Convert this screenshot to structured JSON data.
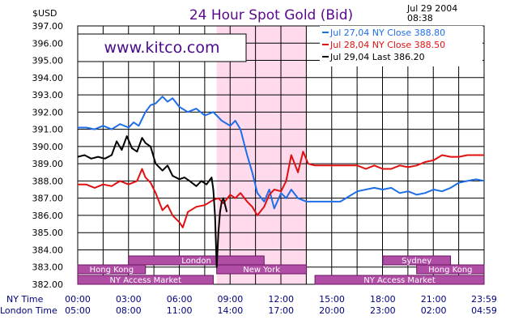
{
  "chart_data": {
    "type": "line",
    "title": "24 Hour Spot Gold (Bid)",
    "ylabel": "$USD",
    "date": "Jul 29 2004",
    "time": "08:38",
    "watermark": "www.kitco.com",
    "ylim": [
      382,
      397
    ],
    "yticks": [
      "397.00",
      "396.00",
      "395.00",
      "394.00",
      "393.00",
      "392.00",
      "391.00",
      "390.00",
      "389.00",
      "388.00",
      "387.00",
      "386.00",
      "385.00",
      "384.00",
      "383.00",
      "382.00"
    ],
    "xticks_ny": [
      "00:00",
      "03:00",
      "06:00",
      "09:00",
      "12:00",
      "15:00",
      "18:00",
      "21:00",
      "23:59"
    ],
    "xticks_london": [
      "05:00",
      "08:00",
      "11:00",
      "14:00",
      "17:00",
      "20:00",
      "23:00",
      "02:00",
      "04:59"
    ],
    "xrow_ny_label": "NY Time",
    "xrow_london_label": "London Time",
    "legend": [
      {
        "date": "Jul 27,04",
        "label": "NY Close",
        "value": "388.80",
        "color": "#1e6ee8"
      },
      {
        "date": "Jul 28,04",
        "label": "NY Close",
        "value": "388.50",
        "color": "#e01010"
      },
      {
        "date": "Jul 29,04",
        "label": "Last",
        "value": "386.20",
        "color": "#000000"
      }
    ],
    "markets": [
      {
        "name": "London",
        "start": 3.0,
        "end": 11.0,
        "row": 0
      },
      {
        "name": "Sydney",
        "start": 18.0,
        "end": 22.0,
        "row": 0
      },
      {
        "name": "Hong Kong",
        "start": 0.0,
        "end": 4.0,
        "row": 1
      },
      {
        "name": "New York",
        "start": 8.2,
        "end": 13.5,
        "row": 1
      },
      {
        "name": "Hong Kong",
        "start": 20.0,
        "end": 23.98,
        "row": 1
      },
      {
        "name": "NY Access Market",
        "start": 0.0,
        "end": 8.0,
        "row": 2
      },
      {
        "name": "NY Access Market",
        "start": 14.0,
        "end": 23.98,
        "row": 2
      }
    ],
    "highlight": {
      "start": 8.2,
      "end": 13.5
    },
    "series": [
      {
        "color": "#1e6ee8",
        "points": [
          [
            0,
            391.1
          ],
          [
            0.5,
            391.1
          ],
          [
            1,
            391.0
          ],
          [
            1.5,
            391.2
          ],
          [
            2,
            391.0
          ],
          [
            2.5,
            391.3
          ],
          [
            3,
            391.1
          ],
          [
            3.3,
            391.4
          ],
          [
            3.6,
            391.2
          ],
          [
            4,
            392.0
          ],
          [
            4.3,
            392.4
          ],
          [
            4.6,
            392.5
          ],
          [
            5,
            392.9
          ],
          [
            5.3,
            392.6
          ],
          [
            5.6,
            392.8
          ],
          [
            6,
            392.3
          ],
          [
            6.5,
            392.0
          ],
          [
            7,
            392.2
          ],
          [
            7.5,
            391.8
          ],
          [
            8,
            392.0
          ],
          [
            8.5,
            391.5
          ],
          [
            9,
            391.2
          ],
          [
            9.3,
            391.5
          ],
          [
            9.6,
            391.0
          ],
          [
            10,
            389.5
          ],
          [
            10.3,
            388.5
          ],
          [
            10.6,
            387.3
          ],
          [
            11,
            386.8
          ],
          [
            11.3,
            387.5
          ],
          [
            11.6,
            386.4
          ],
          [
            12,
            387.3
          ],
          [
            12.3,
            387.0
          ],
          [
            12.6,
            387.5
          ],
          [
            13,
            387.0
          ],
          [
            13.5,
            386.8
          ],
          [
            14,
            386.8
          ],
          [
            14.5,
            386.8
          ],
          [
            15,
            386.8
          ],
          [
            15.5,
            386.8
          ],
          [
            16,
            387.1
          ],
          [
            16.5,
            387.4
          ],
          [
            17,
            387.5
          ],
          [
            17.5,
            387.6
          ],
          [
            18,
            387.5
          ],
          [
            18.5,
            387.6
          ],
          [
            19,
            387.3
          ],
          [
            19.5,
            387.4
          ],
          [
            20,
            387.2
          ],
          [
            20.5,
            387.3
          ],
          [
            21,
            387.5
          ],
          [
            21.5,
            387.4
          ],
          [
            22,
            387.6
          ],
          [
            22.5,
            387.9
          ],
          [
            23,
            388.0
          ],
          [
            23.5,
            388.1
          ],
          [
            23.98,
            388.0
          ]
        ]
      },
      {
        "color": "#e01010",
        "points": [
          [
            0,
            387.8
          ],
          [
            0.5,
            387.8
          ],
          [
            1,
            387.6
          ],
          [
            1.5,
            387.8
          ],
          [
            2,
            387.7
          ],
          [
            2.5,
            388.0
          ],
          [
            3,
            387.8
          ],
          [
            3.5,
            388.0
          ],
          [
            3.8,
            388.7
          ],
          [
            4,
            388.2
          ],
          [
            4.3,
            387.9
          ],
          [
            4.6,
            387.3
          ],
          [
            5,
            386.3
          ],
          [
            5.3,
            386.6
          ],
          [
            5.6,
            386.0
          ],
          [
            6,
            385.6
          ],
          [
            6.2,
            385.3
          ],
          [
            6.5,
            386.2
          ],
          [
            7,
            386.5
          ],
          [
            7.5,
            386.6
          ],
          [
            8,
            386.9
          ],
          [
            8.3,
            387.0
          ],
          [
            8.6,
            386.7
          ],
          [
            9,
            387.2
          ],
          [
            9.3,
            387.0
          ],
          [
            9.6,
            387.3
          ],
          [
            10,
            386.8
          ],
          [
            10.3,
            386.5
          ],
          [
            10.6,
            386.0
          ],
          [
            11,
            386.5
          ],
          [
            11.3,
            387.2
          ],
          [
            11.6,
            387.5
          ],
          [
            12,
            387.4
          ],
          [
            12.3,
            388.0
          ],
          [
            12.6,
            389.5
          ],
          [
            13,
            388.5
          ],
          [
            13.3,
            389.7
          ],
          [
            13.6,
            389.0
          ],
          [
            14,
            388.9
          ],
          [
            14.5,
            388.9
          ],
          [
            15,
            388.9
          ],
          [
            15.5,
            388.9
          ],
          [
            16,
            388.9
          ],
          [
            16.5,
            388.9
          ],
          [
            17,
            388.7
          ],
          [
            17.5,
            388.9
          ],
          [
            18,
            388.7
          ],
          [
            18.5,
            388.7
          ],
          [
            19,
            388.9
          ],
          [
            19.5,
            388.8
          ],
          [
            20,
            388.9
          ],
          [
            20.5,
            389.1
          ],
          [
            21,
            389.2
          ],
          [
            21.5,
            389.5
          ],
          [
            22,
            389.4
          ],
          [
            22.5,
            389.4
          ],
          [
            23,
            389.5
          ],
          [
            23.5,
            389.5
          ],
          [
            23.98,
            389.5
          ]
        ]
      },
      {
        "color": "#000000",
        "points": [
          [
            0,
            389.4
          ],
          [
            0.4,
            389.5
          ],
          [
            0.8,
            389.3
          ],
          [
            1.2,
            389.4
          ],
          [
            1.6,
            389.3
          ],
          [
            2,
            389.5
          ],
          [
            2.3,
            390.3
          ],
          [
            2.6,
            389.8
          ],
          [
            2.9,
            390.6
          ],
          [
            3.2,
            389.9
          ],
          [
            3.5,
            389.7
          ],
          [
            3.8,
            390.5
          ],
          [
            4,
            390.2
          ],
          [
            4.3,
            390.0
          ],
          [
            4.6,
            389.0
          ],
          [
            5,
            388.6
          ],
          [
            5.3,
            388.9
          ],
          [
            5.6,
            388.3
          ],
          [
            6,
            388.1
          ],
          [
            6.3,
            388.2
          ],
          [
            6.6,
            388.0
          ],
          [
            7,
            387.7
          ],
          [
            7.3,
            388.0
          ],
          [
            7.6,
            387.8
          ],
          [
            7.9,
            388.2
          ],
          [
            8.0,
            387.5
          ],
          [
            8.1,
            386.0
          ],
          [
            8.2,
            383.0
          ],
          [
            8.3,
            385.0
          ],
          [
            8.4,
            386.2
          ],
          [
            8.5,
            386.8
          ],
          [
            8.6,
            387.0
          ],
          [
            8.7,
            386.6
          ],
          [
            8.8,
            386.2
          ]
        ]
      }
    ]
  }
}
